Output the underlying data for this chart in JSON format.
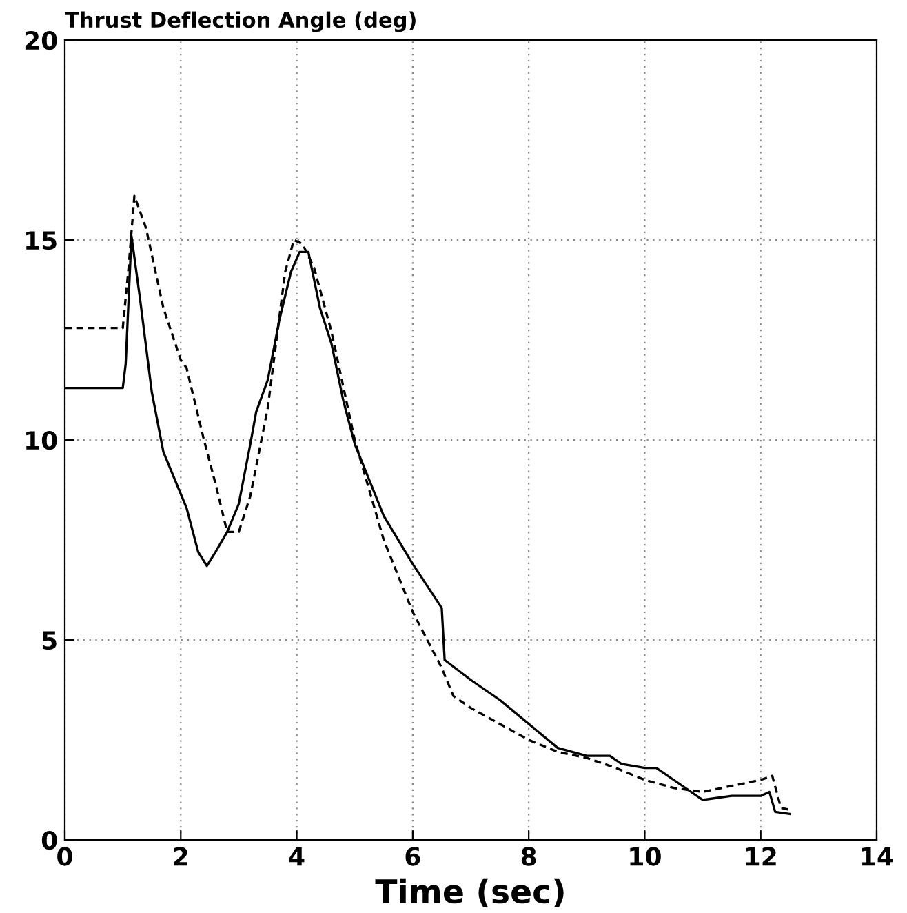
{
  "chart_data": {
    "type": "line",
    "title": "Thrust Deflection Angle (deg)",
    "xlabel": "Time (sec)",
    "xlim": [
      0,
      14
    ],
    "ylim": [
      0,
      20
    ],
    "xticks": [
      0,
      2,
      4,
      6,
      8,
      10,
      12,
      14
    ],
    "yticks": [
      0,
      5,
      10,
      15,
      20
    ],
    "grid": true,
    "series": [
      {
        "color": "#000000",
        "line_style": "solid",
        "x": [
          0,
          1.0,
          1.05,
          1.15,
          1.3,
          1.5,
          1.7,
          1.9,
          2.1,
          2.3,
          2.45,
          2.6,
          2.8,
          3.0,
          3.2,
          3.3,
          3.5,
          3.7,
          3.9,
          4.05,
          4.2,
          4.4,
          4.6,
          4.8,
          5.0,
          5.5,
          6.0,
          6.5,
          6.55,
          7.0,
          7.5,
          8.0,
          8.5,
          9.0,
          9.4,
          9.6,
          10.0,
          10.2,
          10.5,
          11.0,
          11.5,
          12.0,
          12.15,
          12.25,
          12.5
        ],
        "values": [
          11.3,
          11.3,
          11.9,
          15.1,
          13.5,
          11.2,
          9.7,
          9.0,
          8.3,
          7.2,
          6.85,
          7.2,
          7.7,
          8.4,
          9.9,
          10.7,
          11.5,
          13.0,
          14.2,
          14.7,
          14.7,
          13.3,
          12.4,
          11.0,
          9.9,
          8.1,
          6.9,
          5.8,
          4.5,
          4.0,
          3.5,
          2.9,
          2.3,
          2.1,
          2.1,
          1.9,
          1.8,
          1.8,
          1.5,
          1.0,
          1.1,
          1.1,
          1.2,
          0.7,
          0.65
        ]
      },
      {
        "color": "#000000",
        "line_style": "dashed",
        "x": [
          0,
          1.0,
          1.1,
          1.2,
          1.4,
          1.7,
          2.0,
          2.1,
          2.4,
          2.6,
          2.8,
          3.0,
          3.2,
          3.5,
          3.8,
          3.95,
          4.1,
          4.3,
          4.6,
          5.0,
          5.5,
          6.0,
          6.5,
          6.7,
          7.0,
          7.5,
          8.0,
          8.5,
          9.0,
          9.5,
          10.0,
          10.5,
          11.0,
          11.5,
          12.0,
          12.2,
          12.35,
          12.5
        ],
        "values": [
          12.8,
          12.8,
          14.3,
          16.1,
          15.3,
          13.3,
          12.0,
          11.8,
          10.0,
          8.9,
          7.7,
          7.7,
          8.6,
          10.8,
          14.2,
          15.0,
          14.9,
          14.3,
          12.7,
          10.0,
          7.5,
          5.7,
          4.3,
          3.6,
          3.3,
          2.9,
          2.5,
          2.2,
          2.05,
          1.8,
          1.5,
          1.3,
          1.2,
          1.35,
          1.5,
          1.6,
          0.8,
          0.75
        ]
      }
    ]
  }
}
